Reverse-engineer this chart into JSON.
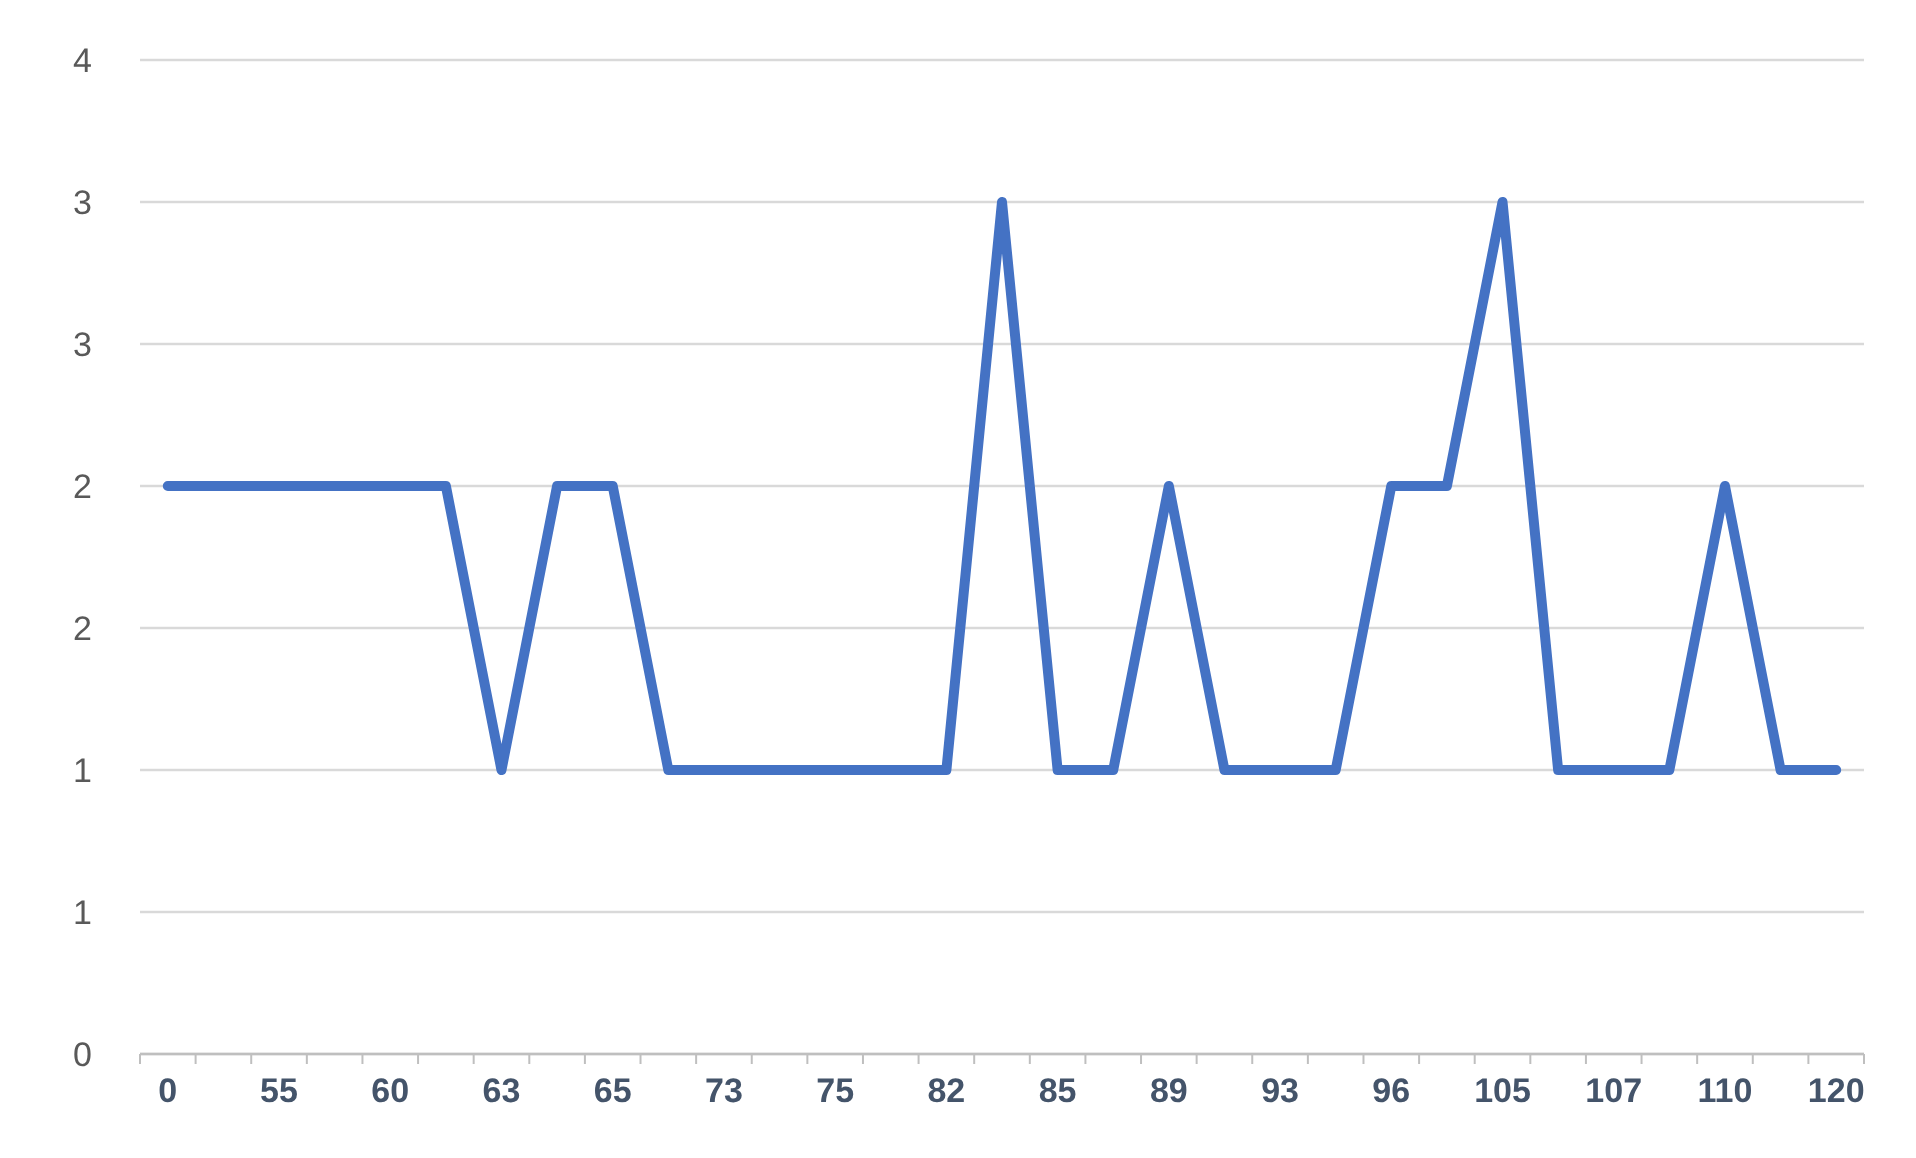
{
  "chart_data": {
    "type": "line",
    "categories": [
      "0",
      null,
      "55",
      null,
      "60",
      null,
      "63",
      null,
      "65",
      null,
      "73",
      null,
      "75",
      null,
      "82",
      null,
      "85",
      null,
      "89",
      null,
      "93",
      null,
      "96",
      null,
      "105",
      null,
      "107",
      null,
      "110",
      null,
      "120"
    ],
    "series": [
      {
        "color": "#4472c4",
        "values": [
          2,
          2,
          2,
          2,
          2,
          2,
          1,
          2,
          2,
          1,
          1,
          1,
          1,
          1,
          1,
          3,
          1,
          1,
          2,
          1,
          1,
          1,
          2,
          2,
          3,
          1,
          1,
          1,
          2,
          1,
          1
        ]
      }
    ],
    "ylim": [
      0,
      3.5
    ],
    "yticks": [
      0,
      {
        "value": 0.5,
        "label": "1"
      },
      1,
      {
        "value": 1.5,
        "label": "2"
      },
      2,
      {
        "value": 2.5,
        "label": "3"
      },
      3,
      {
        "value": 3.5,
        "label": "4"
      }
    ],
    "grid": "y",
    "marker": "none",
    "line_style": "solid"
  }
}
